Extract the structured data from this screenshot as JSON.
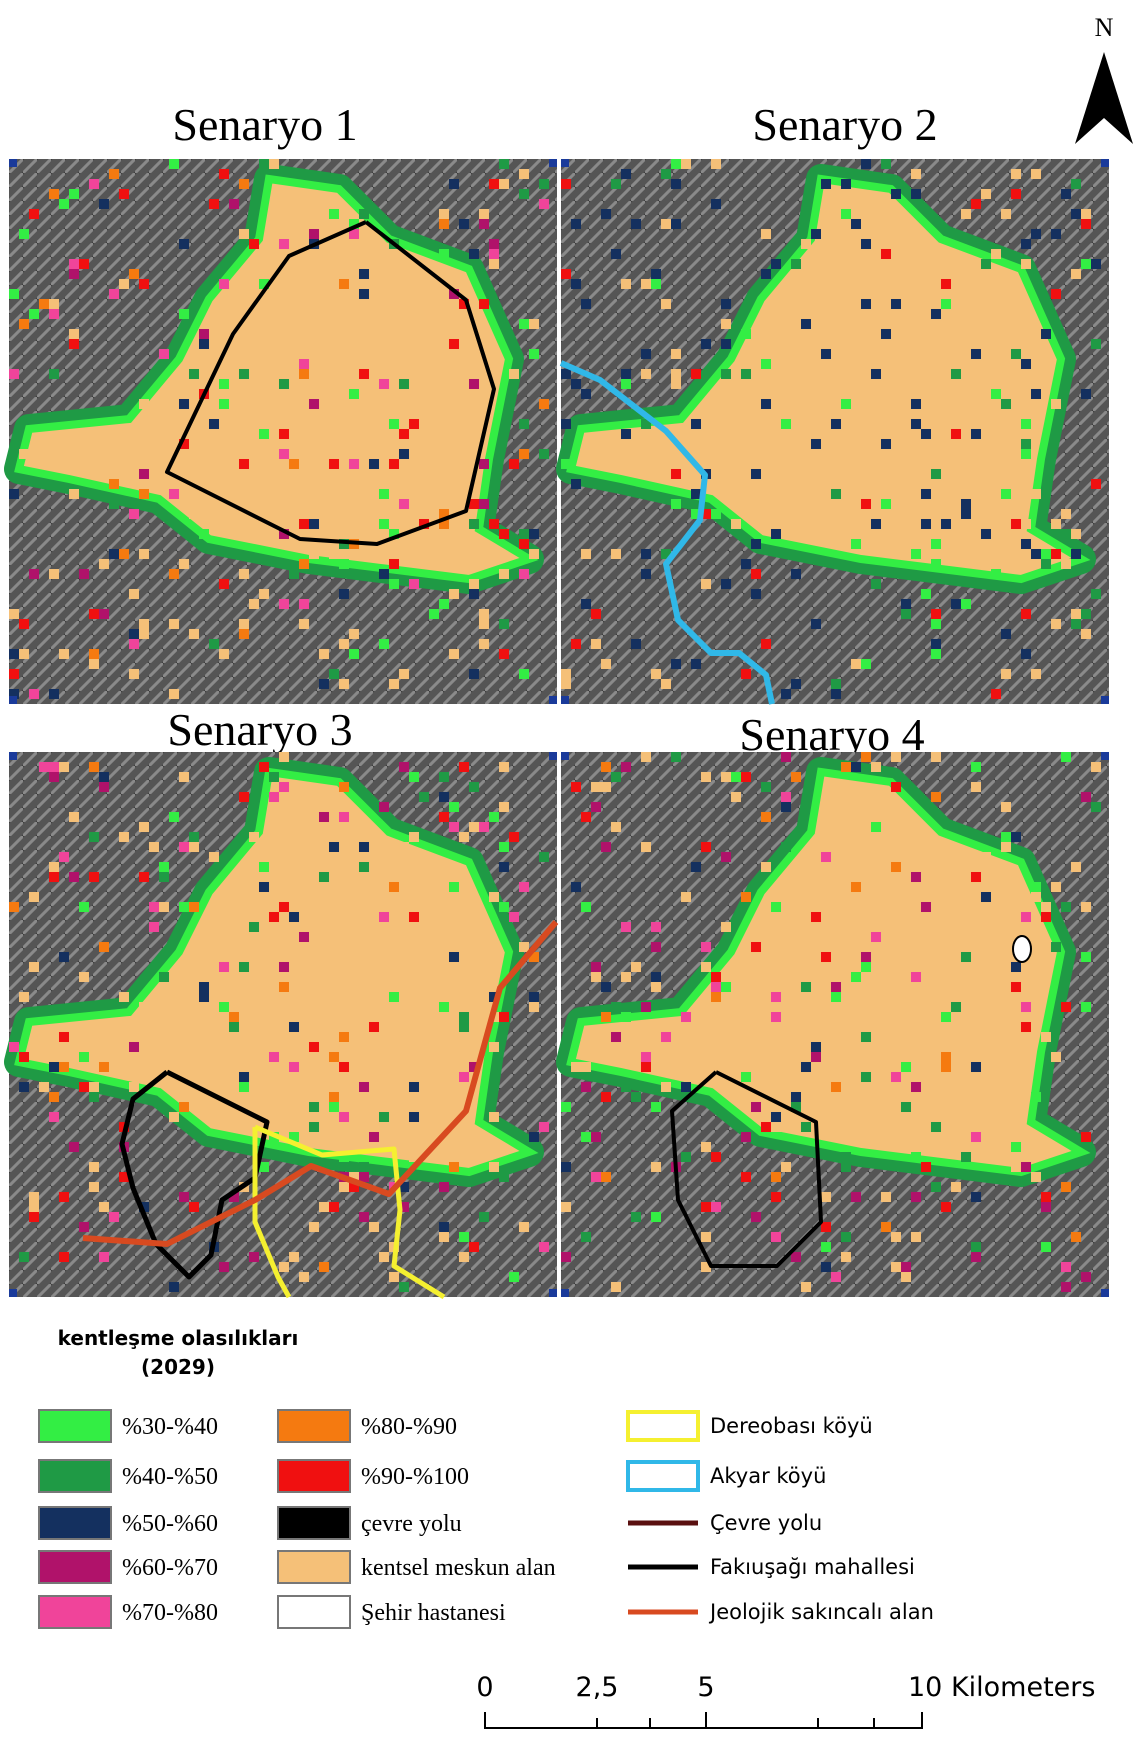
{
  "north": "N",
  "panels": [
    {
      "title": "Senaryo 1"
    },
    {
      "title": "Senaryo 2"
    },
    {
      "title": "Senaryo 3"
    },
    {
      "title": "Senaryo 4"
    }
  ],
  "legend": {
    "title": "kentleşme olasılıkları",
    "subtitle": "(2029)",
    "items": [
      {
        "label": "%30-%40",
        "color": "#33ee44"
      },
      {
        "label": "%40-%50",
        "color": "#1f9a45"
      },
      {
        "label": "%50-%60",
        "color": "#14305f"
      },
      {
        "label": "%60-%70",
        "color": "#b0126a"
      },
      {
        "label": "%70-%80",
        "color": "#f0449a"
      },
      {
        "label": "%80-%90",
        "color": "#f57a10"
      },
      {
        "label": "%90-%100",
        "color": "#f01010"
      },
      {
        "label": "çevre yolu",
        "color": "#000000"
      },
      {
        "label": "kentsel meskun alan",
        "color": "#f5c078"
      },
      {
        "label": "Şehir hastanesi",
        "color": "#ffffff"
      }
    ],
    "lines": [
      {
        "label": "Dereobası köyü",
        "color": "#f5f030"
      },
      {
        "label": "Akyar köyü",
        "color": "#30b8e8"
      },
      {
        "label": "Çevre yolu",
        "color": "#5a1010"
      },
      {
        "label": "Fakıuşağı mahallesi",
        "color": "#000000"
      },
      {
        "label": "Jeolojik sakıncalı alan",
        "color": "#d84a20"
      }
    ]
  },
  "scale_bar": {
    "labels": [
      "0",
      "2,5",
      "5",
      "10 Kilometers"
    ]
  }
}
